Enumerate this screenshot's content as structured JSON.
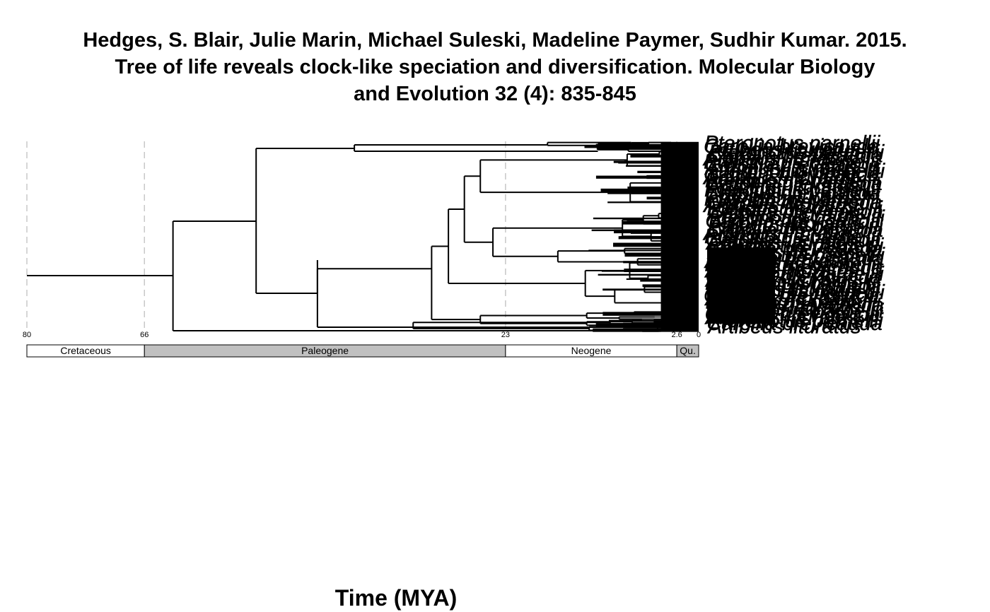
{
  "title_lines": [
    "Hedges, S. Blair, Julie Marin, Michael Suleski, Madeline Paymer, Sudhir Kumar. 2015.",
    "Tree of life reveals clock-like speciation and diversification. Molecular Biology",
    "and Evolution 32 (4): 835-845"
  ],
  "x_axis_label": "Time (MYA)",
  "ticks": [
    "80",
    "66",
    "23",
    "2.6",
    "0"
  ],
  "periods": [
    {
      "name": "Cretaceous",
      "fill": "#ffffff"
    },
    {
      "name": "Paleogene",
      "fill": "#c0c0c0"
    },
    {
      "name": "Neogene",
      "fill": "#ffffff"
    },
    {
      "name": "Qu.",
      "fill": "#c0c0c0"
    }
  ],
  "leaf_labels_visible": [
    "Pteronotus parnellii",
    "Carollia brevicauda",
    "Artibeus lituratus"
  ],
  "chart_data": {
    "type": "phylogenetic-tree",
    "x_axis": "Time (MYA)",
    "x_reversed": true,
    "xlim": [
      80,
      0
    ],
    "tick_values": [
      80,
      66,
      23,
      2.6,
      0
    ],
    "gridlines_at": [
      80,
      66,
      23,
      2.6
    ],
    "periods": [
      {
        "name": "Cretaceous",
        "start": 80,
        "end": 66
      },
      {
        "name": "Paleogene",
        "start": 66,
        "end": 23
      },
      {
        "name": "Neogene",
        "start": 23,
        "end": 2.6
      },
      {
        "name": "Qu.",
        "start": 2.6,
        "end": 0
      }
    ],
    "major_nodes_mya": [
      80,
      62.6,
      52.7,
      45.4,
      31.8,
      27.9
    ],
    "leaf_count_approx": 120
  }
}
